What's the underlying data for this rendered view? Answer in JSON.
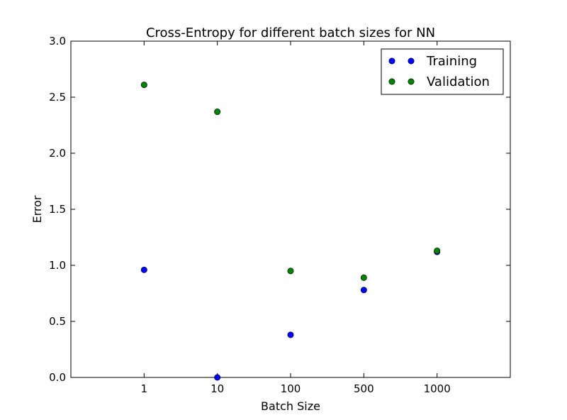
{
  "chart_data": {
    "type": "scatter",
    "title": "Cross-Entropy for different batch sizes for NN",
    "xlabel": "Batch Size",
    "ylabel": "Error",
    "categories": [
      "1",
      "10",
      "100",
      "500",
      "1000"
    ],
    "ylim": [
      0,
      3.0
    ],
    "yticks": [
      "0.0",
      "0.5",
      "1.0",
      "1.5",
      "2.0",
      "2.5",
      "3.0"
    ],
    "grid": false,
    "legend_position": "top-right",
    "series": [
      {
        "name": "Training",
        "color": "#0000ff",
        "values": [
          0.96,
          0.0,
          0.38,
          0.78,
          1.12
        ]
      },
      {
        "name": "Validation",
        "color": "#008000",
        "values": [
          2.61,
          2.37,
          0.95,
          0.89,
          1.13
        ]
      }
    ]
  }
}
